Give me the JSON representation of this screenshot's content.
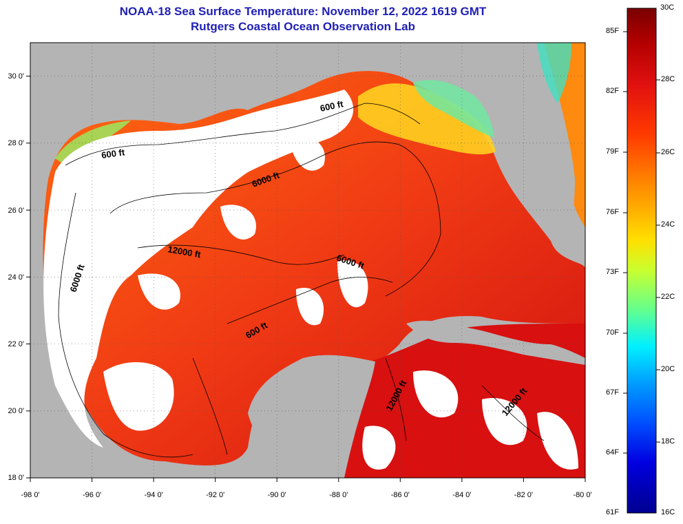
{
  "title": "NOAA-18 Sea Surface Temperature:  November 12, 2022 1619 GMT",
  "subtitle": "Rutgers Coastal Ocean Observation Lab",
  "map": {
    "lon_min": -98,
    "lon_max": -80,
    "lat_min": 18,
    "lat_max": 31,
    "x_ticks": [
      "-98 0'",
      "-96 0'",
      "-94 0'",
      "-92 0'",
      "-90 0'",
      "-88 0'",
      "-86 0'",
      "-84 0'",
      "-82 0'",
      "-80 0'"
    ],
    "y_ticks": [
      "30 0'",
      "28 0'",
      "26 0'",
      "24 0'",
      "22 0'",
      "20 0'",
      "18 0'"
    ],
    "contour_labels": [
      "600 ft",
      "600 ft",
      "6000 ft",
      "6000 ft",
      "12000 ft",
      "6000 ft",
      "600 ft",
      "12000 ft",
      "12000 ft"
    ],
    "land_color": "#b4b4b4",
    "cloud_color": "#ffffff",
    "grid": true
  },
  "colorbar": {
    "top_label": "30C",
    "bottom_celsius": "16C",
    "bottom_fahrenheit": "61F",
    "fahrenheit_labels": [
      "85F",
      "82F",
      "79F",
      "76F",
      "73F",
      "70F",
      "67F",
      "64F"
    ],
    "celsius_labels": [
      "28C",
      "26C",
      "24C",
      "22C",
      "20C",
      "18C"
    ],
    "colors": [
      "#7a0000",
      "#b40000",
      "#e01010",
      "#ff3a00",
      "#ff7a00",
      "#ffb000",
      "#ffe000",
      "#c8ff30",
      "#60ff90",
      "#00f0ff",
      "#00a0ff",
      "#0050ff",
      "#0000e0",
      "#000090"
    ]
  }
}
